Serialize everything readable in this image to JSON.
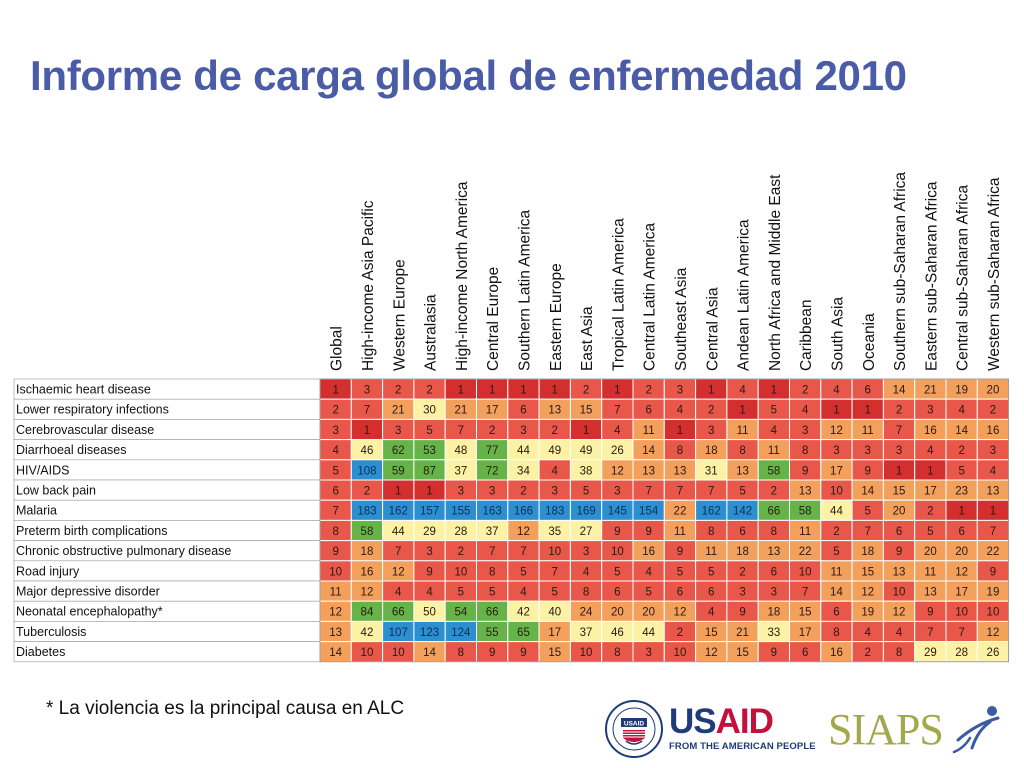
{
  "slide": {
    "title": "Informe de carga global de enfermedad 2010",
    "footnote": "* La violencia es la principal causa en ALC"
  },
  "logos": {
    "usaid": {
      "word_1": "US",
      "word_2": "AID",
      "tagline": "FROM THE AMERICAN PEOPLE",
      "seal_text": "UNITED STATES AGENCY · INTERNATIONAL DEVELOPMENT"
    },
    "siaps": {
      "word": "SIAPS"
    }
  },
  "colors": {
    "title": "#4a5ba7",
    "rank_top": "#d32f2f",
    "rank_high": "#e8574a",
    "rank_mid": "#f3a05d",
    "rank_low": "#fcf2a6",
    "rank_lower": "#66b449",
    "rank_lowest": "#2b8fd0"
  },
  "chart_data": {
    "type": "heatmap",
    "title": "",
    "columns": [
      "Global",
      "High-income Asia Pacific",
      "Western Europe",
      "Australasia",
      "High-income North America",
      "Central Europe",
      "Southern Latin America",
      "Eastern Europe",
      "East Asia",
      "Tropical Latin America",
      "Central Latin America",
      "Southeast Asia",
      "Central Asia",
      "Andean Latin America",
      "North Africa and Middle East",
      "Caribbean",
      "South Asia",
      "Oceania",
      "Southern sub-Saharan Africa",
      "Eastern sub-Saharan Africa",
      "Central sub-Saharan Africa",
      "Western sub-Saharan Africa"
    ],
    "rows": [
      "Ischaemic heart disease",
      "Lower respiratory infections",
      "Cerebrovascular disease",
      "Diarrhoeal diseases",
      "HIV/AIDS",
      "Low back pain",
      "Malaria",
      "Preterm birth complications",
      "Chronic obstructive pulmonary disease",
      "Road injury",
      "Major depressive disorder",
      "Neonatal encephalopathy*",
      "Tuberculosis",
      "Diabetes"
    ],
    "values": [
      [
        1,
        3,
        2,
        2,
        1,
        1,
        1,
        1,
        2,
        1,
        2,
        3,
        1,
        4,
        1,
        2,
        4,
        6,
        14,
        21,
        19,
        20
      ],
      [
        2,
        7,
        21,
        30,
        21,
        17,
        6,
        13,
        15,
        7,
        6,
        4,
        2,
        1,
        5,
        4,
        1,
        1,
        2,
        3,
        4,
        2
      ],
      [
        3,
        1,
        3,
        5,
        7,
        2,
        3,
        2,
        1,
        4,
        11,
        1,
        3,
        11,
        4,
        3,
        12,
        11,
        7,
        16,
        14,
        16
      ],
      [
        4,
        46,
        62,
        53,
        48,
        77,
        44,
        49,
        49,
        26,
        14,
        8,
        18,
        8,
        11,
        8,
        3,
        3,
        3,
        4,
        2,
        3
      ],
      [
        5,
        108,
        59,
        87,
        37,
        72,
        34,
        4,
        38,
        12,
        13,
        13,
        31,
        13,
        58,
        9,
        17,
        9,
        1,
        1,
        5,
        4
      ],
      [
        6,
        2,
        1,
        1,
        3,
        3,
        2,
        3,
        5,
        3,
        7,
        7,
        7,
        5,
        2,
        13,
        10,
        14,
        15,
        17,
        23,
        13
      ],
      [
        7,
        183,
        162,
        157,
        155,
        163,
        166,
        183,
        169,
        145,
        154,
        22,
        162,
        142,
        66,
        58,
        44,
        5,
        20,
        2,
        1,
        1
      ],
      [
        8,
        58,
        44,
        29,
        28,
        37,
        12,
        35,
        27,
        9,
        9,
        11,
        8,
        6,
        8,
        11,
        2,
        7,
        6,
        5,
        6,
        7
      ],
      [
        9,
        18,
        7,
        3,
        2,
        7,
        7,
        10,
        3,
        10,
        16,
        9,
        11,
        18,
        13,
        22,
        5,
        18,
        9,
        20,
        20,
        22
      ],
      [
        10,
        16,
        12,
        9,
        10,
        8,
        5,
        7,
        4,
        5,
        4,
        5,
        5,
        2,
        6,
        10,
        11,
        15,
        13,
        11,
        12,
        9
      ],
      [
        11,
        12,
        4,
        4,
        5,
        5,
        4,
        5,
        8,
        6,
        5,
        6,
        6,
        3,
        3,
        7,
        14,
        12,
        10,
        13,
        17,
        19
      ],
      [
        12,
        84,
        66,
        50,
        54,
        66,
        42,
        40,
        24,
        20,
        20,
        12,
        4,
        9,
        18,
        15,
        6,
        19,
        12,
        9,
        10,
        10
      ],
      [
        13,
        42,
        107,
        123,
        124,
        55,
        65,
        17,
        37,
        46,
        44,
        2,
        15,
        21,
        33,
        17,
        8,
        4,
        4,
        7,
        7,
        12
      ],
      [
        14,
        10,
        10,
        14,
        8,
        9,
        9,
        15,
        10,
        8,
        3,
        10,
        12,
        15,
        9,
        6,
        16,
        2,
        8,
        29,
        28,
        26
      ]
    ],
    "color_scale": "rank: 1-10 red, 11-25 orange, 26-50 yellow, 51-100 green, >100 blue",
    "grid": true,
    "legend": "none"
  }
}
